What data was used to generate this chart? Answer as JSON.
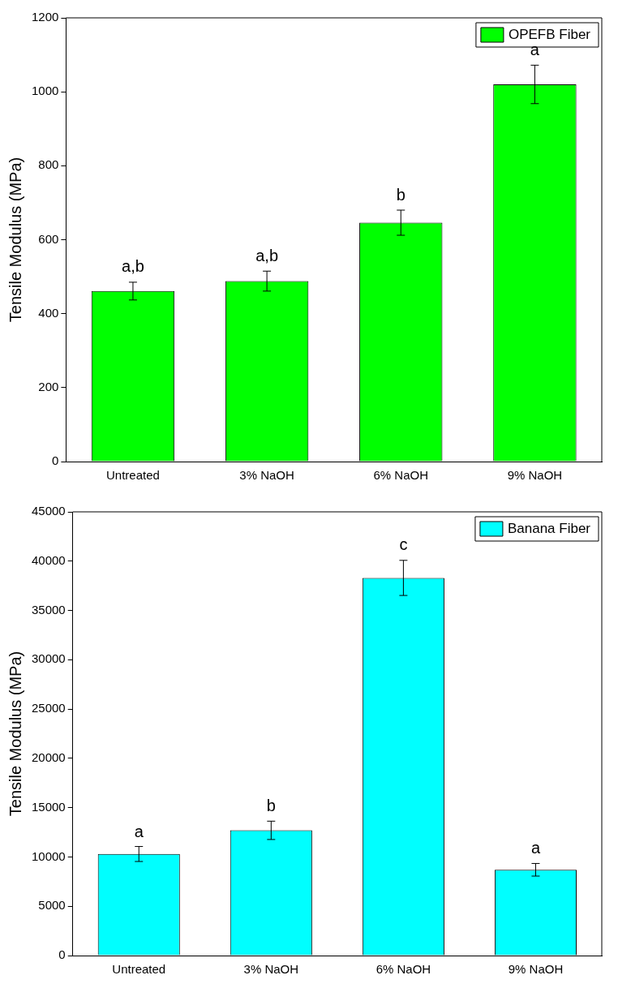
{
  "chart_data": [
    {
      "type": "bar",
      "ylabel": "Tensile Modulus (MPa)",
      "categories": [
        "Untreated",
        "3% NaOH",
        "6% NaOH",
        "9% NaOH"
      ],
      "series": [
        {
          "name": "OPEFB Fiber",
          "color": "#00ff00",
          "values": [
            461,
            488,
            646,
            1020
          ],
          "errors": [
            24,
            27,
            34,
            52
          ]
        }
      ],
      "ylim": [
        0,
        1200
      ],
      "yticks": [
        0,
        200,
        400,
        600,
        800,
        1000,
        1200
      ],
      "grid": false,
      "legend": "top right",
      "annotations": [
        {
          "text": "a,b",
          "x": "Untreated",
          "y": 485
        },
        {
          "text": "a,b",
          "x": "3% NaOH",
          "y": 515
        },
        {
          "text": "b",
          "x": "6% NaOH",
          "y": 680
        },
        {
          "text": "a",
          "x": "9% NaOH",
          "y": 1072
        }
      ]
    },
    {
      "type": "bar",
      "ylabel": "Tensile Modulus (MPa)",
      "categories": [
        "Untreated",
        "3% NaOH",
        "6% NaOH",
        "9% NaOH"
      ],
      "series": [
        {
          "name": "Banana Fiber",
          "color": "#00ffff",
          "values": [
            10300,
            12700,
            38300,
            8700
          ],
          "errors": [
            760,
            930,
            1780,
            640
          ]
        }
      ],
      "ylim": [
        0,
        45000
      ],
      "yticks": [
        0,
        5000,
        10000,
        15000,
        20000,
        25000,
        30000,
        35000,
        40000,
        45000
      ],
      "grid": false,
      "legend": "top right",
      "annotations": [
        {
          "text": "a",
          "x": "Untreated",
          "y": 11010
        },
        {
          "text": "b",
          "x": "3% NaOH",
          "y": 13640
        },
        {
          "text": "c",
          "x": "6% NaOH",
          "y": 40080
        },
        {
          "text": "a",
          "x": "9% NaOH",
          "y": 9370
        }
      ]
    }
  ]
}
